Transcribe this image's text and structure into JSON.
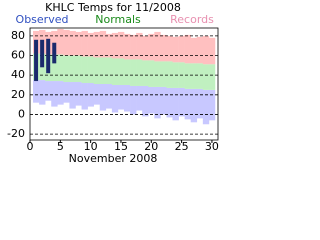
{
  "chart_data": {
    "type": "range-bar",
    "title": "KHLC Temps for 11/2008",
    "x_label": "November 2008",
    "x": [
      1,
      2,
      3,
      4,
      5,
      6,
      7,
      8,
      9,
      10,
      11,
      12,
      13,
      14,
      15,
      16,
      17,
      18,
      19,
      20,
      21,
      22,
      23,
      24,
      25,
      26,
      27,
      28,
      29,
      30
    ],
    "xlim": [
      0,
      31
    ],
    "xticks": [
      0,
      5,
      10,
      15,
      20,
      25,
      30
    ],
    "ylim": [
      -26,
      88
    ],
    "yticks": [
      -20,
      0,
      20,
      40,
      60,
      80
    ],
    "grid": true,
    "series": [
      {
        "name": "Records",
        "color": "#ffc0c0",
        "low_color": "#c8c8ff",
        "high": [
          85,
          86,
          84,
          85,
          87,
          86,
          85,
          84,
          85,
          83,
          84,
          85,
          82,
          83,
          84,
          82,
          81,
          83,
          80,
          82,
          84,
          81,
          80,
          79,
          80,
          81,
          78,
          79,
          80,
          78
        ],
        "low": [
          12,
          10,
          14,
          8,
          10,
          12,
          6,
          9,
          5,
          8,
          10,
          4,
          6,
          2,
          5,
          3,
          0,
          4,
          -2,
          1,
          -4,
          0,
          -3,
          -6,
          -2,
          -5,
          -8,
          -4,
          -10,
          -6
        ]
      },
      {
        "name": "Normals",
        "color": "#c0f0c0",
        "high": [
          62,
          62,
          61,
          61,
          61,
          60,
          60,
          60,
          59,
          59,
          58,
          58,
          58,
          57,
          57,
          56,
          56,
          56,
          55,
          55,
          54,
          54,
          54,
          53,
          53,
          52,
          52,
          52,
          51,
          51
        ],
        "low": [
          35,
          35,
          34,
          34,
          34,
          33,
          33,
          33,
          32,
          32,
          31,
          31,
          31,
          30,
          30,
          30,
          29,
          29,
          29,
          28,
          28,
          28,
          27,
          27,
          27,
          26,
          26,
          26,
          25,
          25
        ]
      },
      {
        "name": "Observed",
        "color": "#1a2a6c",
        "high": [
          76,
          76,
          77,
          73,
          null,
          null,
          null,
          null,
          null,
          null,
          null,
          null,
          null,
          null,
          null,
          null,
          null,
          null,
          null,
          null,
          null,
          null,
          null,
          null,
          null,
          null,
          null,
          null,
          null,
          null
        ],
        "low": [
          34,
          48,
          42,
          52,
          null,
          null,
          null,
          null,
          null,
          null,
          null,
          null,
          null,
          null,
          null,
          null,
          null,
          null,
          null,
          null,
          null,
          null,
          null,
          null,
          null,
          null,
          null,
          null,
          null,
          null
        ]
      }
    ]
  }
}
